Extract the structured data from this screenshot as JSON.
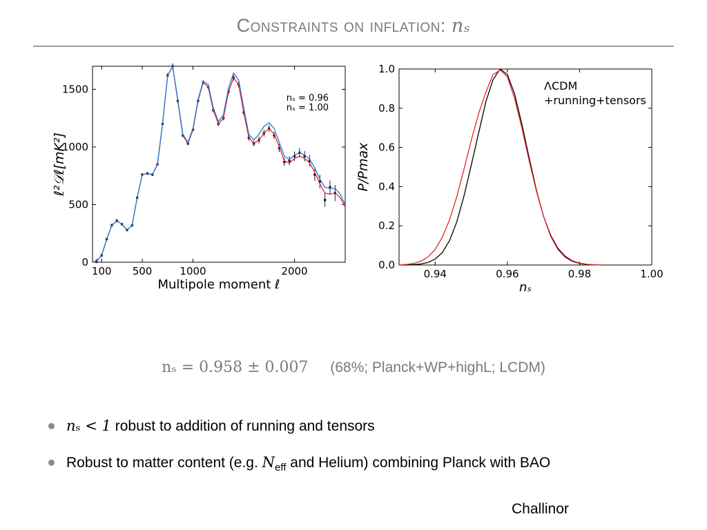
{
  "slide": {
    "title_text": "Constraints on inflation: ",
    "title_symbol": "nₛ",
    "result_math": "nₛ = 0.958 ± 0.007",
    "result_note": "(68%; Planck+WP+highL; LCDM)",
    "bullets": [
      {
        "math": "nₛ < 1",
        "text": " robust to addition of running and tensors"
      },
      {
        "pre": "Robust to matter content (e.g. ",
        "math": "N",
        "sub": "eff",
        "post": " and Helium) combining Planck with BAO"
      }
    ],
    "author": "Challinor"
  },
  "colors": {
    "title_grey": "#7a7a7a",
    "red": "#e8212b",
    "blue": "#1f78d1",
    "black": "#000000"
  },
  "chart_data": [
    {
      "type": "line",
      "xlabel": "Multipole moment ℓ",
      "ylabel": "ℓ²𝒟ℓ[mK²]",
      "xlim": [
        10,
        2500
      ],
      "ylim": [
        0,
        1700
      ],
      "xticks": [
        "100",
        "500",
        "1000",
        "2000"
      ],
      "xtick_values": [
        100,
        500,
        1000,
        2000
      ],
      "yticks": [
        "0",
        "500",
        "1000",
        "1500"
      ],
      "ytick_values": [
        0,
        500,
        1000,
        1500
      ],
      "legend": {
        "placement": "top-right",
        "entries": [
          "nₛ = 0.96",
          "nₛ = 1.00"
        ]
      },
      "series": [
        {
          "name": "nₛ = 0.96",
          "color": "#e8212b",
          "x": [
            10,
            50,
            100,
            150,
            200,
            250,
            300,
            350,
            400,
            450,
            500,
            550,
            600,
            650,
            700,
            750,
            800,
            850,
            900,
            950,
            1000,
            1050,
            1100,
            1150,
            1200,
            1250,
            1300,
            1350,
            1400,
            1450,
            1500,
            1550,
            1600,
            1650,
            1700,
            1750,
            1800,
            1850,
            1900,
            1950,
            2000,
            2050,
            2100,
            2150,
            2200,
            2250,
            2300,
            2350,
            2400,
            2450,
            2500
          ],
          "y": [
            0,
            10,
            60,
            200,
            320,
            360,
            330,
            280,
            320,
            560,
            760,
            770,
            760,
            850,
            1200,
            1620,
            1700,
            1400,
            1100,
            1030,
            1150,
            1400,
            1560,
            1520,
            1320,
            1200,
            1250,
            1480,
            1600,
            1540,
            1300,
            1080,
            1030,
            1060,
            1120,
            1160,
            1110,
            1000,
            880,
            860,
            900,
            920,
            900,
            860,
            780,
            680,
            600,
            590,
            600,
            560,
            480
          ]
        },
        {
          "name": "nₛ = 1.00",
          "color": "#1f78d1",
          "x": [
            10,
            50,
            100,
            150,
            200,
            250,
            300,
            350,
            400,
            450,
            500,
            550,
            600,
            650,
            700,
            750,
            800,
            850,
            900,
            950,
            1000,
            1050,
            1100,
            1150,
            1200,
            1250,
            1300,
            1350,
            1400,
            1450,
            1500,
            1550,
            1600,
            1650,
            1700,
            1750,
            1800,
            1850,
            1900,
            1950,
            2000,
            2050,
            2100,
            2150,
            2200,
            2250,
            2300,
            2350,
            2400,
            2450,
            2500
          ],
          "y": [
            0,
            10,
            60,
            200,
            320,
            360,
            330,
            280,
            320,
            560,
            760,
            770,
            760,
            850,
            1200,
            1620,
            1700,
            1410,
            1110,
            1040,
            1160,
            1410,
            1570,
            1540,
            1340,
            1220,
            1280,
            1510,
            1640,
            1580,
            1340,
            1110,
            1060,
            1110,
            1180,
            1210,
            1160,
            1040,
            920,
            890,
            930,
            950,
            930,
            890,
            820,
            720,
            650,
            640,
            640,
            590,
            500
          ]
        }
      ],
      "error_points": {
        "x": [
          50,
          100,
          150,
          200,
          250,
          300,
          350,
          400,
          450,
          500,
          550,
          600,
          650,
          700,
          750,
          800,
          850,
          900,
          950,
          1000,
          1050,
          1100,
          1150,
          1200,
          1250,
          1300,
          1350,
          1400,
          1450,
          1500,
          1550,
          1600,
          1650,
          1700,
          1750,
          1800,
          1850,
          1900,
          1950,
          2000,
          2050,
          2100,
          2150,
          2200,
          2250,
          2300,
          2350,
          2400
        ],
        "y": [
          10,
          60,
          200,
          320,
          360,
          330,
          280,
          320,
          560,
          760,
          770,
          760,
          850,
          1200,
          1620,
          1700,
          1400,
          1100,
          1030,
          1150,
          1400,
          1560,
          1520,
          1320,
          1200,
          1250,
          1480,
          1600,
          1540,
          1300,
          1080,
          1030,
          1060,
          1120,
          1160,
          1100,
          990,
          870,
          880,
          920,
          950,
          920,
          880,
          760,
          700,
          540,
          650,
          600
        ],
        "err": [
          20,
          15,
          15,
          15,
          15,
          12,
          12,
          12,
          12,
          12,
          12,
          12,
          12,
          15,
          20,
          25,
          20,
          15,
          15,
          15,
          20,
          20,
          20,
          20,
          20,
          20,
          25,
          25,
          25,
          25,
          25,
          25,
          30,
          30,
          30,
          30,
          35,
          35,
          40,
          40,
          40,
          45,
          50,
          55,
          60,
          60,
          60,
          70
        ]
      }
    },
    {
      "type": "line",
      "xlabel": "nₛ",
      "ylabel": "P/Pmax",
      "xlim": [
        0.93,
        1.0
      ],
      "ylim": [
        0.0,
        1.0
      ],
      "xticks": [
        "0.94",
        "0.96",
        "0.98",
        "1.00"
      ],
      "xtick_values": [
        0.94,
        0.96,
        0.98,
        1.0
      ],
      "yticks": [
        "0.0",
        "0.2",
        "0.4",
        "0.6",
        "0.8",
        "1.0"
      ],
      "ytick_values": [
        0.0,
        0.2,
        0.4,
        0.6,
        0.8,
        1.0
      ],
      "legend": {
        "placement": "top-right",
        "entries": [
          "ΛCDM",
          "+running+tensors"
        ]
      },
      "series": [
        {
          "name": "ΛCDM",
          "color": "#000000",
          "x": [
            0.93,
            0.932,
            0.934,
            0.936,
            0.938,
            0.94,
            0.942,
            0.944,
            0.946,
            0.948,
            0.95,
            0.952,
            0.954,
            0.956,
            0.958,
            0.96,
            0.962,
            0.964,
            0.966,
            0.968,
            0.97,
            0.972,
            0.974,
            0.976,
            0.978,
            0.98,
            0.982,
            0.984,
            0.986
          ],
          "y": [
            0.0,
            0.0,
            0.002,
            0.005,
            0.013,
            0.03,
            0.064,
            0.125,
            0.221,
            0.353,
            0.51,
            0.67,
            0.83,
            0.945,
            1.0,
            0.972,
            0.873,
            0.72,
            0.55,
            0.386,
            0.25,
            0.148,
            0.081,
            0.041,
            0.019,
            0.008,
            0.003,
            0.001,
            0.0
          ]
        },
        {
          "name": "+running+tensors",
          "color": "#e8212b",
          "x": [
            0.93,
            0.932,
            0.934,
            0.936,
            0.938,
            0.94,
            0.942,
            0.944,
            0.946,
            0.948,
            0.95,
            0.952,
            0.954,
            0.956,
            0.958,
            0.96,
            0.962,
            0.964,
            0.966,
            0.968,
            0.97,
            0.972,
            0.974,
            0.976,
            0.978,
            0.98,
            0.982,
            0.984,
            0.986
          ],
          "y": [
            0.0,
            0.003,
            0.008,
            0.019,
            0.041,
            0.08,
            0.142,
            0.232,
            0.35,
            0.49,
            0.636,
            0.77,
            0.88,
            0.97,
            0.995,
            0.96,
            0.85,
            0.7,
            0.535,
            0.38,
            0.25,
            0.153,
            0.087,
            0.046,
            0.022,
            0.01,
            0.004,
            0.001,
            0.0
          ]
        }
      ]
    }
  ]
}
